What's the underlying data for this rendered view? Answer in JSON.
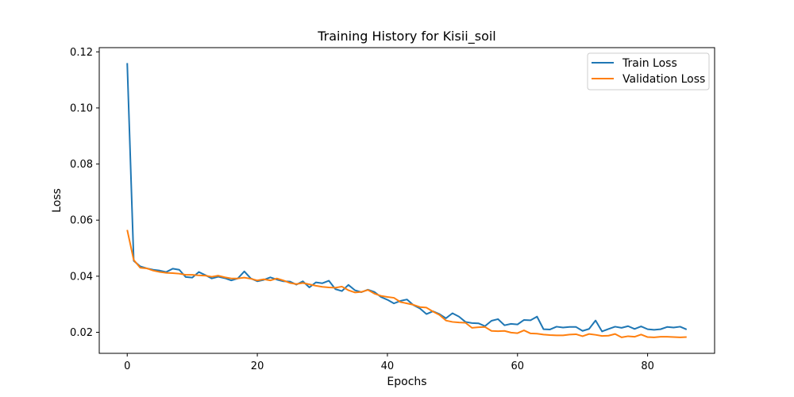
{
  "chart_data": {
    "type": "line",
    "title": "Training History for Kisii_soil",
    "xlabel": "Epochs",
    "ylabel": "Loss",
    "xlim": [
      -4.3,
      90.3
    ],
    "ylim": [
      0.0125,
      0.1215
    ],
    "x_ticks": [
      0,
      20,
      40,
      60,
      80
    ],
    "y_ticks": [
      0.02,
      0.04,
      0.06,
      0.08,
      0.1,
      0.12
    ],
    "x_tick_labels": [
      "0",
      "20",
      "40",
      "60",
      "80"
    ],
    "y_tick_labels": [
      "0.02",
      "0.04",
      "0.06",
      "0.08",
      "0.10",
      "0.12"
    ],
    "grid": false,
    "legend_position": "top-right",
    "series": [
      {
        "name": "Train Loss",
        "color": "#1f77b4",
        "x": [
          0,
          1,
          2,
          3,
          4,
          5,
          6,
          7,
          8,
          9,
          10,
          11,
          12,
          13,
          14,
          15,
          16,
          17,
          18,
          19,
          20,
          21,
          22,
          23,
          24,
          25,
          26,
          27,
          28,
          29,
          30,
          31,
          32,
          33,
          34,
          35,
          36,
          37,
          38,
          39,
          40,
          41,
          42,
          43,
          44,
          45,
          46,
          47,
          48,
          49,
          50,
          51,
          52,
          53,
          54,
          55,
          56,
          57,
          58,
          59,
          60,
          61,
          62,
          63,
          64,
          65,
          66,
          67,
          68,
          69,
          70,
          71,
          72,
          73,
          74,
          75,
          76,
          77,
          78,
          79,
          80,
          81,
          82,
          83,
          84,
          85,
          86
        ],
        "y": [
          0.116,
          0.0455,
          0.0435,
          0.0428,
          0.0423,
          0.042,
          0.0415,
          0.0427,
          0.0423,
          0.0397,
          0.0395,
          0.0415,
          0.0404,
          0.0392,
          0.0398,
          0.0393,
          0.0385,
          0.0392,
          0.0417,
          0.0392,
          0.0382,
          0.0387,
          0.0396,
          0.0388,
          0.0382,
          0.0381,
          0.037,
          0.0382,
          0.036,
          0.0378,
          0.0375,
          0.0384,
          0.0354,
          0.0347,
          0.0369,
          0.035,
          0.0343,
          0.0352,
          0.0344,
          0.0326,
          0.0316,
          0.0303,
          0.0312,
          0.0317,
          0.0297,
          0.0285,
          0.0265,
          0.0275,
          0.0265,
          0.025,
          0.0268,
          0.0256,
          0.0237,
          0.0233,
          0.0232,
          0.0222,
          0.0241,
          0.0247,
          0.0225,
          0.023,
          0.0228,
          0.0244,
          0.0243,
          0.0256,
          0.0211,
          0.021,
          0.022,
          0.0217,
          0.0219,
          0.0219,
          0.0205,
          0.0212,
          0.0242,
          0.0203,
          0.0212,
          0.022,
          0.0216,
          0.0222,
          0.0212,
          0.0221,
          0.0211,
          0.0209,
          0.0211,
          0.0219,
          0.0217,
          0.022,
          0.021
        ]
      },
      {
        "name": "Validation Loss",
        "color": "#ff7f0e",
        "x": [
          0,
          1,
          2,
          3,
          4,
          5,
          6,
          7,
          8,
          9,
          10,
          11,
          12,
          13,
          14,
          15,
          16,
          17,
          18,
          19,
          20,
          21,
          22,
          23,
          24,
          25,
          26,
          27,
          28,
          29,
          30,
          31,
          32,
          33,
          34,
          35,
          36,
          37,
          38,
          39,
          40,
          41,
          42,
          43,
          44,
          45,
          46,
          47,
          48,
          49,
          50,
          51,
          52,
          53,
          54,
          55,
          56,
          57,
          58,
          59,
          60,
          61,
          62,
          63,
          64,
          65,
          66,
          67,
          68,
          69,
          70,
          71,
          72,
          73,
          74,
          75,
          76,
          77,
          78,
          79,
          80,
          81,
          82,
          83,
          84,
          85,
          86
        ],
        "y": [
          0.0565,
          0.0458,
          0.043,
          0.0428,
          0.042,
          0.0415,
          0.0412,
          0.0411,
          0.0409,
          0.0405,
          0.0405,
          0.0403,
          0.0402,
          0.0398,
          0.0402,
          0.0396,
          0.0392,
          0.0392,
          0.0395,
          0.0391,
          0.0385,
          0.0389,
          0.0385,
          0.0392,
          0.0385,
          0.0376,
          0.0372,
          0.0376,
          0.0371,
          0.0366,
          0.0362,
          0.036,
          0.0359,
          0.0363,
          0.035,
          0.0342,
          0.0344,
          0.0351,
          0.0338,
          0.033,
          0.0326,
          0.0323,
          0.0308,
          0.0303,
          0.0298,
          0.029,
          0.0288,
          0.0274,
          0.0262,
          0.0242,
          0.0237,
          0.0235,
          0.0234,
          0.0216,
          0.0218,
          0.0219,
          0.0205,
          0.0204,
          0.0205,
          0.0199,
          0.0197,
          0.0207,
          0.0196,
          0.0195,
          0.0192,
          0.019,
          0.0189,
          0.0189,
          0.0192,
          0.0193,
          0.0186,
          0.0194,
          0.0191,
          0.0187,
          0.0188,
          0.0194,
          0.0182,
          0.0186,
          0.0184,
          0.0192,
          0.0183,
          0.0182,
          0.0184,
          0.0184,
          0.0183,
          0.0182,
          0.0183
        ]
      }
    ]
  }
}
